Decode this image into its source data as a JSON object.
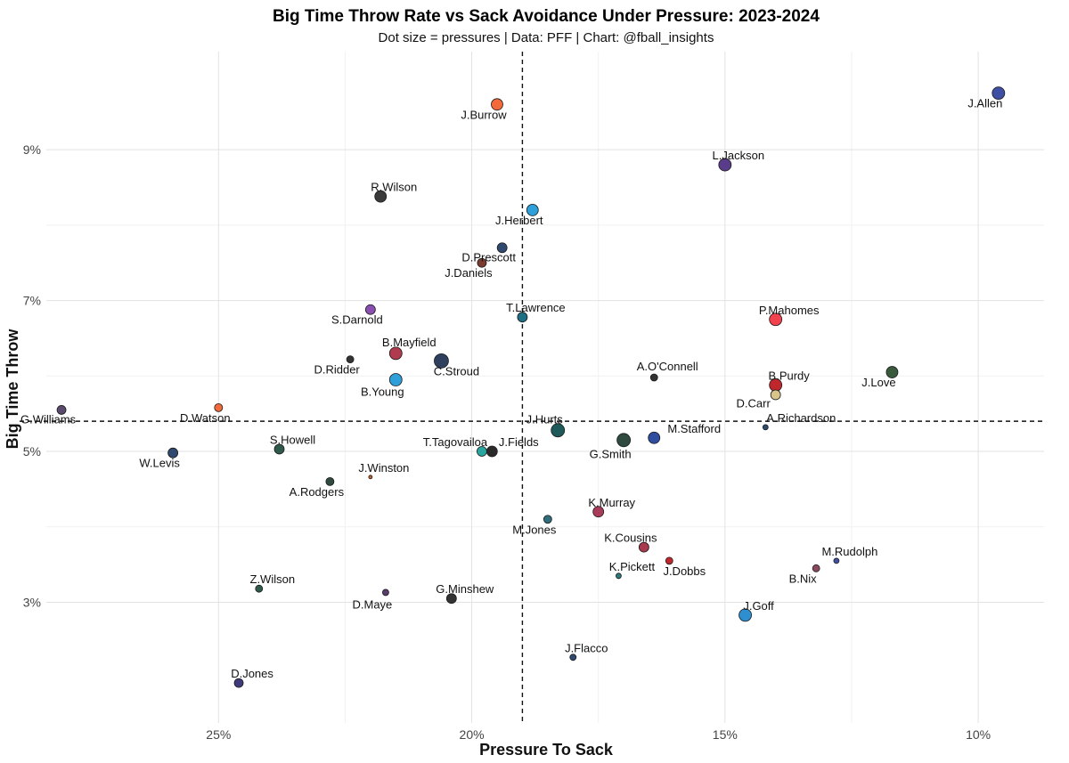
{
  "chart_data": {
    "type": "scatter",
    "title": "Big Time Throw Rate vs Sack Avoidance Under Pressure: 2023-2024",
    "subtitle": "Dot size = pressures | Data: PFF | Chart: @fball_insights",
    "xlabel": "Pressure To Sack",
    "ylabel": "Big Time Throw",
    "x_axis_reversed": true,
    "xlim": [
      28.4,
      8.7
    ],
    "ylim": [
      1.4,
      10.3
    ],
    "x_ticks": [
      25,
      20,
      15,
      10
    ],
    "x_tick_labels": [
      "25%",
      "20%",
      "15%",
      "10%"
    ],
    "y_ticks": [
      3,
      5,
      7,
      9
    ],
    "y_tick_labels": [
      "3%",
      "5%",
      "7%",
      "9%"
    ],
    "gridlines": true,
    "reference_lines": [
      {
        "axis": "x",
        "value": 19.0,
        "style": "dashed"
      },
      {
        "axis": "y",
        "value": 5.4,
        "style": "dashed"
      }
    ],
    "points": [
      {
        "label": "J.Allen",
        "x": 9.6,
        "y": 9.75,
        "size": 7,
        "color": "#3f4fa3"
      },
      {
        "label": "J.Burrow",
        "x": 19.5,
        "y": 9.6,
        "size": 6.5,
        "color": "#f26a3a"
      },
      {
        "label": "L.Jackson",
        "x": 15.0,
        "y": 8.8,
        "size": 7,
        "color": "#5a3d8a"
      },
      {
        "label": "R.Wilson",
        "x": 21.8,
        "y": 8.38,
        "size": 6.5,
        "color": "#3a3a3a"
      },
      {
        "label": "J.Herbert",
        "x": 18.8,
        "y": 8.2,
        "size": 6.5,
        "color": "#2e9fd8"
      },
      {
        "label": "D.Prescott",
        "x": 19.4,
        "y": 7.7,
        "size": 5.5,
        "color": "#2f4a6e"
      },
      {
        "label": "J.Daniels",
        "x": 19.8,
        "y": 7.5,
        "size": 5,
        "color": "#7a3b2e"
      },
      {
        "label": "S.Darnold",
        "x": 22.0,
        "y": 6.88,
        "size": 5.5,
        "color": "#8a4fb0"
      },
      {
        "label": "T.Lawrence",
        "x": 19.0,
        "y": 6.78,
        "size": 5.5,
        "color": "#1e6e84"
      },
      {
        "label": "P.Mahomes",
        "x": 14.0,
        "y": 6.75,
        "size": 7,
        "color": "#f2424d"
      },
      {
        "label": "B.Mayfield",
        "x": 21.5,
        "y": 6.3,
        "size": 7,
        "color": "#b03a4e"
      },
      {
        "label": "C.Stroud",
        "x": 20.6,
        "y": 6.2,
        "size": 8,
        "color": "#2f3f5e"
      },
      {
        "label": "D.Ridder",
        "x": 22.4,
        "y": 6.22,
        "size": 4,
        "color": "#333333"
      },
      {
        "label": "J.Love",
        "x": 11.7,
        "y": 6.05,
        "size": 6.5,
        "color": "#3a5a3e"
      },
      {
        "label": "A.O'Connell",
        "x": 16.4,
        "y": 5.98,
        "size": 4,
        "color": "#333333"
      },
      {
        "label": "B.Young",
        "x": 21.5,
        "y": 5.95,
        "size": 7,
        "color": "#2e9fd8"
      },
      {
        "label": "B.Purdy",
        "x": 14.0,
        "y": 5.88,
        "size": 7,
        "color": "#c0272d"
      },
      {
        "label": "D.Carr",
        "x": 14.0,
        "y": 5.75,
        "size": 5.5,
        "color": "#d9c48a"
      },
      {
        "label": "D.Watson",
        "x": 25.0,
        "y": 5.58,
        "size": 4.5,
        "color": "#f26a3a"
      },
      {
        "label": "G.Williams",
        "x": 28.1,
        "y": 5.55,
        "size": 5,
        "color": "#5a4a6e"
      },
      {
        "label": "A.Richardson",
        "x": 14.2,
        "y": 5.32,
        "size": 3,
        "color": "#2f4a6e"
      },
      {
        "label": "J.Hurts",
        "x": 18.3,
        "y": 5.28,
        "size": 7.5,
        "color": "#1e5a5a"
      },
      {
        "label": "M.Stafford",
        "x": 16.4,
        "y": 5.18,
        "size": 6.5,
        "color": "#2f4ea0"
      },
      {
        "label": "G.Smith",
        "x": 17.0,
        "y": 5.15,
        "size": 7.5,
        "color": "#2f4a3e"
      },
      {
        "label": "S.Howell",
        "x": 23.8,
        "y": 5.03,
        "size": 5.5,
        "color": "#2f5a4a"
      },
      {
        "label": "T.Tagovailoa",
        "x": 19.8,
        "y": 5.0,
        "size": 5.5,
        "color": "#2aa6a0"
      },
      {
        "label": "J.Fields",
        "x": 19.6,
        "y": 5.0,
        "size": 6,
        "color": "#2a2a2a"
      },
      {
        "label": "W.Levis",
        "x": 25.9,
        "y": 4.98,
        "size": 5.5,
        "color": "#2f4a6e"
      },
      {
        "label": "J.Winston",
        "x": 22.0,
        "y": 4.66,
        "size": 2,
        "color": "#c0602a"
      },
      {
        "label": "A.Rodgers",
        "x": 22.8,
        "y": 4.6,
        "size": 4.5,
        "color": "#2f4a3e"
      },
      {
        "label": "K.Murray",
        "x": 17.5,
        "y": 4.2,
        "size": 6,
        "color": "#a83a5a"
      },
      {
        "label": "M.Jones",
        "x": 18.5,
        "y": 4.1,
        "size": 4.5,
        "color": "#2f6e7a"
      },
      {
        "label": "K.Cousins",
        "x": 16.6,
        "y": 3.73,
        "size": 5.5,
        "color": "#a83a4e"
      },
      {
        "label": "J.Dobbs",
        "x": 16.1,
        "y": 3.55,
        "size": 4,
        "color": "#c0272d"
      },
      {
        "label": "M.Rudolph",
        "x": 12.8,
        "y": 3.55,
        "size": 3,
        "color": "#3f4fa3"
      },
      {
        "label": "B.Nix",
        "x": 13.2,
        "y": 3.45,
        "size": 4,
        "color": "#8a4a5e"
      },
      {
        "label": "K.Pickett",
        "x": 17.1,
        "y": 3.35,
        "size": 3,
        "color": "#2f7a7a"
      },
      {
        "label": "Z.Wilson",
        "x": 24.2,
        "y": 3.18,
        "size": 4,
        "color": "#2f5a4a"
      },
      {
        "label": "D.Maye",
        "x": 21.7,
        "y": 3.13,
        "size": 3.5,
        "color": "#5a3d6e"
      },
      {
        "label": "G.Minshew",
        "x": 20.4,
        "y": 3.05,
        "size": 5.5,
        "color": "#333333"
      },
      {
        "label": "J.Goff",
        "x": 14.6,
        "y": 2.83,
        "size": 7,
        "color": "#2e8fd0"
      },
      {
        "label": "J.Flacco",
        "x": 18.0,
        "y": 2.27,
        "size": 3.5,
        "color": "#2f4a6e"
      },
      {
        "label": "D.Jones",
        "x": 24.6,
        "y": 1.93,
        "size": 5,
        "color": "#3f3a7a"
      }
    ]
  }
}
